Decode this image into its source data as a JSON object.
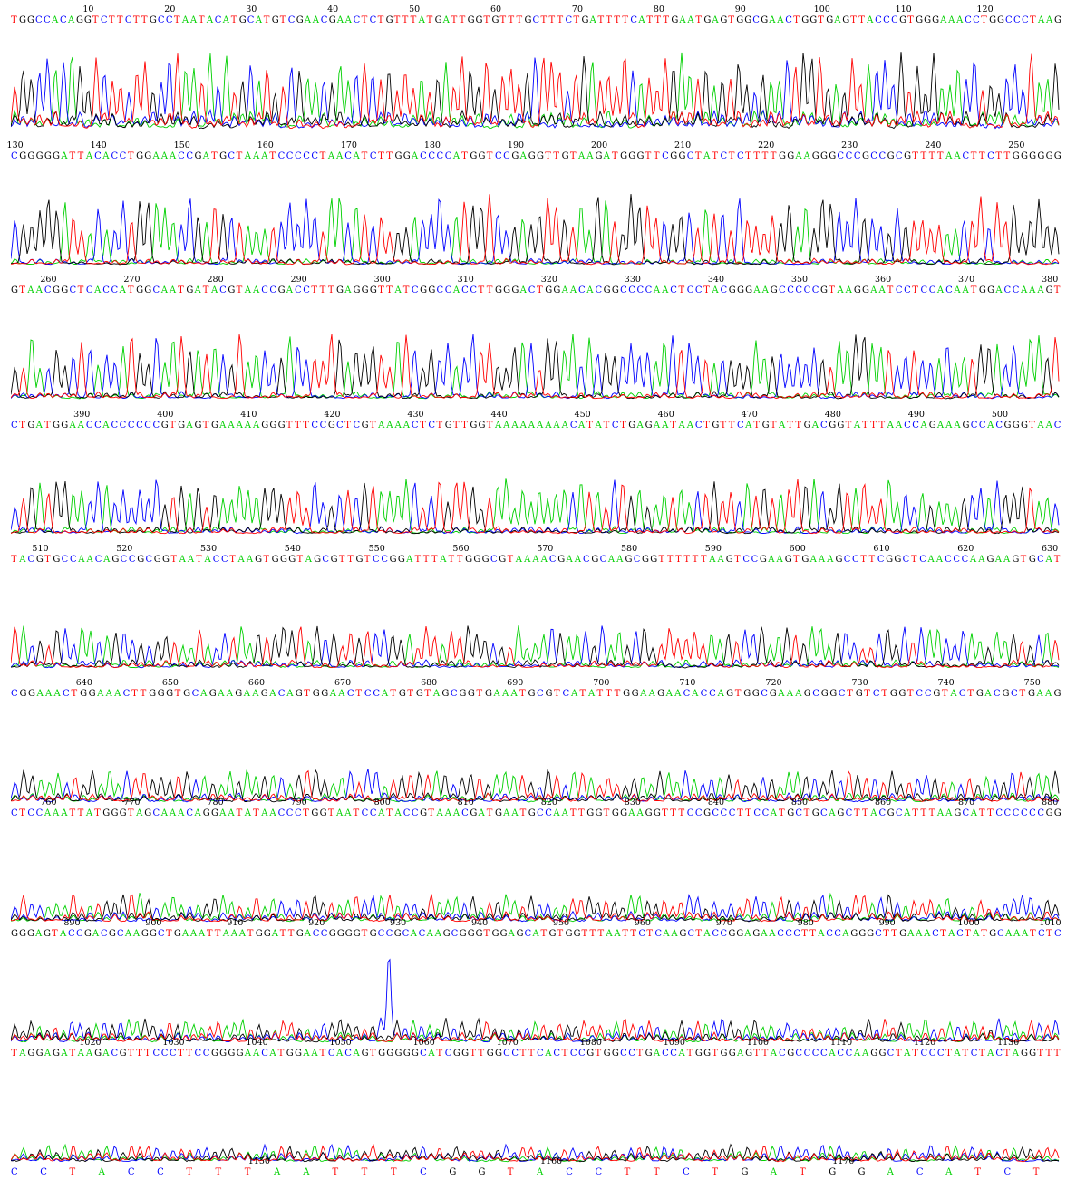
{
  "chart_data": {
    "type": "line",
    "title": "",
    "xlabel": "",
    "ylabel": "",
    "colors": {
      "A": "#00d000",
      "C": "#0000ff",
      "G": "#000000",
      "T": "#ff0000"
    },
    "rows": [
      {
        "start": 1,
        "ticks": [
          "10",
          "20",
          "30",
          "40",
          "50",
          "60",
          "70",
          "80",
          "90",
          "100",
          "110",
          "120"
        ],
        "sequence": "TGGCCACAGGTCTTCTTGCCTAATACATGCATGTCGAACGAACTCTGTTTATGATTGGTGTTTGCTTTCTGATTTTCATTTGAATGAGTGGCGAACTGGTGAGTTACCCGTGGGAAACCTGGCCCTAAG",
        "peak_level": 0.8,
        "noise_level": 0.3
      },
      {
        "start": 130,
        "ticks": [
          "130",
          "140",
          "150",
          "160",
          "170",
          "180",
          "190",
          "200",
          "210",
          "220",
          "230",
          "240",
          "250"
        ],
        "sequence": "CGGGGGATTACACCTGGAAACCGATGCTAAATCCCCCTAACATCTTGGACCCCATGGTCCGAGGTTGTAAGATGGGTTCGGCTATCTCTTTTGGAAGGGCCCGCCGCGTTTTAACTTCTTGGGGGG",
        "peak_level": 0.75,
        "noise_level": 0.1
      },
      {
        "start": 256,
        "ticks": [
          "260",
          "270",
          "280",
          "290",
          "300",
          "310",
          "320",
          "330",
          "340",
          "350",
          "360",
          "370",
          "380"
        ],
        "sequence": "GTAACGGCTCACCATGGCAATGATACGTAACCGACCTTTGAGGGTTATCGGCCACCTTGGGACTGGAACACGGCCCCAACTCCTACGGGAAGCCCCCGTAAGGAATCCTCCACAATGGACCAAAGT",
        "peak_level": 0.7,
        "noise_level": 0.12
      },
      {
        "start": 382,
        "ticks": [
          "390",
          "400",
          "410",
          "420",
          "430",
          "440",
          "450",
          "460",
          "470",
          "480",
          "490",
          "500"
        ],
        "sequence": "CTGATGGAACCACCCCCCGTGAGTGAAAAAGGGTTTCCGCTCGTAAAACTCTGTTGGTAAAAAAAAACATATCTGAGAATAACTGTTCATGTATTGACGGTATTTAACCAGAAAGCCACGGGTAAC",
        "peak_level": 0.6,
        "noise_level": 0.12
      },
      {
        "start": 507,
        "ticks": [
          "510",
          "520",
          "530",
          "540",
          "550",
          "560",
          "570",
          "580",
          "590",
          "600",
          "610",
          "620",
          "630"
        ],
        "sequence": "TACGTGCCAACAGCCGCGGTAATACCTAAGTGGGTAGCGTTGTCCGGATTTATTGGGCGTAAAACGAACGCAAGCGGTTTTTTAAGTCCGAAGTGAAAGCCTTCGGCTCAACCCAAGAAGTGCAT",
        "peak_level": 0.45,
        "noise_level": 0.14
      },
      {
        "start": 632,
        "ticks": [
          "640",
          "650",
          "660",
          "670",
          "680",
          "690",
          "700",
          "710",
          "720",
          "730",
          "740",
          "750"
        ],
        "sequence": "CGGAAACTGGAAACTTGGGTGCAGAAGAAGACAGTGGAACTCCATGTGTAGCGGTGAAATGCGTCATATTTGGAAGAACACCAGTGGCGAAAGCGGCTGTCTGGTCCGTACTGACGCTGAAG",
        "peak_level": 0.35,
        "noise_level": 0.15
      },
      {
        "start": 756,
        "ticks": [
          "760",
          "770",
          "780",
          "790",
          "800",
          "810",
          "820",
          "830",
          "840",
          "850",
          "860",
          "870",
          "880"
        ],
        "sequence": "CTCCAAATTATGGGTAGCAAACAGGAATATAACCCTGGTAATCCATACCGTAAACGATGAATGCCAATTGGTGGAAGGTTTCCGCCCTTCCATGCTGCAGCTTACGCATTTAAGCATTCCCCCCGG",
        "peak_level": 0.3,
        "noise_level": 0.17
      },
      {
        "start": 883,
        "ticks": [
          "890",
          "900",
          "910",
          "920",
          "930",
          "940",
          "950",
          "960",
          "970",
          "980",
          "990",
          "1000",
          "1010"
        ],
        "sequence": "GGGAGTACCGACGCAAGGCTGAAATTAAATGGATTGACCGGGGTGCCGCACAAGCGGGTGGAGCATGTGGTTTAATTCTCAAGCTACCGGAGAACCCTTACCAGGGCTTGAAACTACTATGCAAATCTC",
        "peak_level": 0.25,
        "noise_level": 0.17,
        "spike": 0.353
      },
      {
        "start": 1011,
        "ticks": [
          "1020",
          "1030",
          "1040",
          "1050",
          "1060",
          "1070",
          "1080",
          "1090",
          "1100",
          "1110",
          "1120",
          "1130",
          "1140"
        ],
        "sequence": "TAGGAGATAAGACGTTTCCCTTCCGGGGAACATGGAATCACAGTGGGGGCATCGGTTGGCCTTCACTCCGTGGCCTGACCATGGTGGAGTTACGCCCCACCAAGGCTATCCCTATCTACTAGGTTT",
        "peak_level": 0.18,
        "noise_level": 0.16
      },
      {
        "start": 1142,
        "ticks": [
          "1150",
          "1160",
          "1170"
        ],
        "sequence": "CCTACCTTTAATTTCGGTACCTTCTGATGGACATCT",
        "peak_level": 0,
        "noise_level": 0
      }
    ]
  }
}
